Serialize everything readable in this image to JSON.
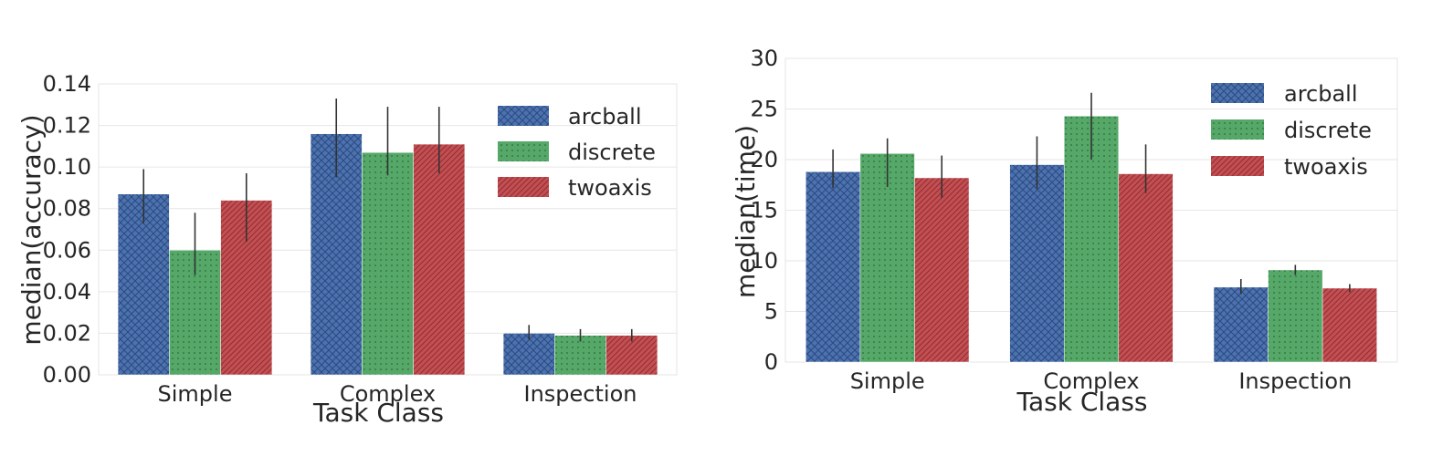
{
  "chart_data": [
    {
      "type": "bar",
      "xlabel": "Task Class",
      "ylabel": "median(accuracy)",
      "categories": [
        "Simple",
        "Complex",
        "Inspection"
      ],
      "ylim": [
        0,
        0.14
      ],
      "yticks": [
        "0.00",
        "0.02",
        "0.04",
        "0.06",
        "0.08",
        "0.10",
        "0.12",
        "0.14"
      ],
      "ytick_values": [
        0,
        0.02,
        0.04,
        0.06,
        0.08,
        0.1,
        0.12,
        0.14
      ],
      "grid": true,
      "legend_position": "top-right",
      "series": [
        {
          "name": "arcball",
          "color": "#4C72B0",
          "pattern": "crosshatch",
          "values": [
            0.087,
            0.116,
            0.02
          ],
          "err_low": [
            0.073,
            0.095,
            0.017
          ],
          "err_high": [
            0.099,
            0.133,
            0.024
          ]
        },
        {
          "name": "discrete",
          "color": "#55A868",
          "pattern": "dots",
          "values": [
            0.06,
            0.107,
            0.019
          ],
          "err_low": [
            0.048,
            0.096,
            0.016
          ],
          "err_high": [
            0.078,
            0.129,
            0.022
          ]
        },
        {
          "name": "twoaxis",
          "color": "#C44E52",
          "pattern": "diagonal",
          "values": [
            0.084,
            0.111,
            0.019
          ],
          "err_low": [
            0.064,
            0.097,
            0.016
          ],
          "err_high": [
            0.097,
            0.129,
            0.022
          ]
        }
      ]
    },
    {
      "type": "bar",
      "xlabel": "Task Class",
      "ylabel": "median(time)",
      "categories": [
        "Simple",
        "Complex",
        "Inspection"
      ],
      "ylim": [
        0,
        30
      ],
      "yticks": [
        "0",
        "5",
        "10",
        "15",
        "20",
        "25",
        "30"
      ],
      "ytick_values": [
        0,
        5,
        10,
        15,
        20,
        25,
        30
      ],
      "grid": true,
      "legend_position": "top-right",
      "series": [
        {
          "name": "arcball",
          "color": "#4C72B0",
          "pattern": "crosshatch",
          "values": [
            18.8,
            19.5,
            7.4
          ],
          "err_low": [
            17.2,
            17.1,
            6.7
          ],
          "err_high": [
            21.0,
            22.3,
            8.2
          ]
        },
        {
          "name": "discrete",
          "color": "#55A868",
          "pattern": "dots",
          "values": [
            20.6,
            24.3,
            9.1
          ],
          "err_low": [
            17.3,
            20.0,
            8.6
          ],
          "err_high": [
            22.1,
            26.6,
            9.6
          ]
        },
        {
          "name": "twoaxis",
          "color": "#C44E52",
          "pattern": "diagonal",
          "values": [
            18.2,
            18.6,
            7.3
          ],
          "err_low": [
            16.2,
            16.7,
            6.9
          ],
          "err_high": [
            20.4,
            21.5,
            7.7
          ]
        }
      ]
    }
  ]
}
